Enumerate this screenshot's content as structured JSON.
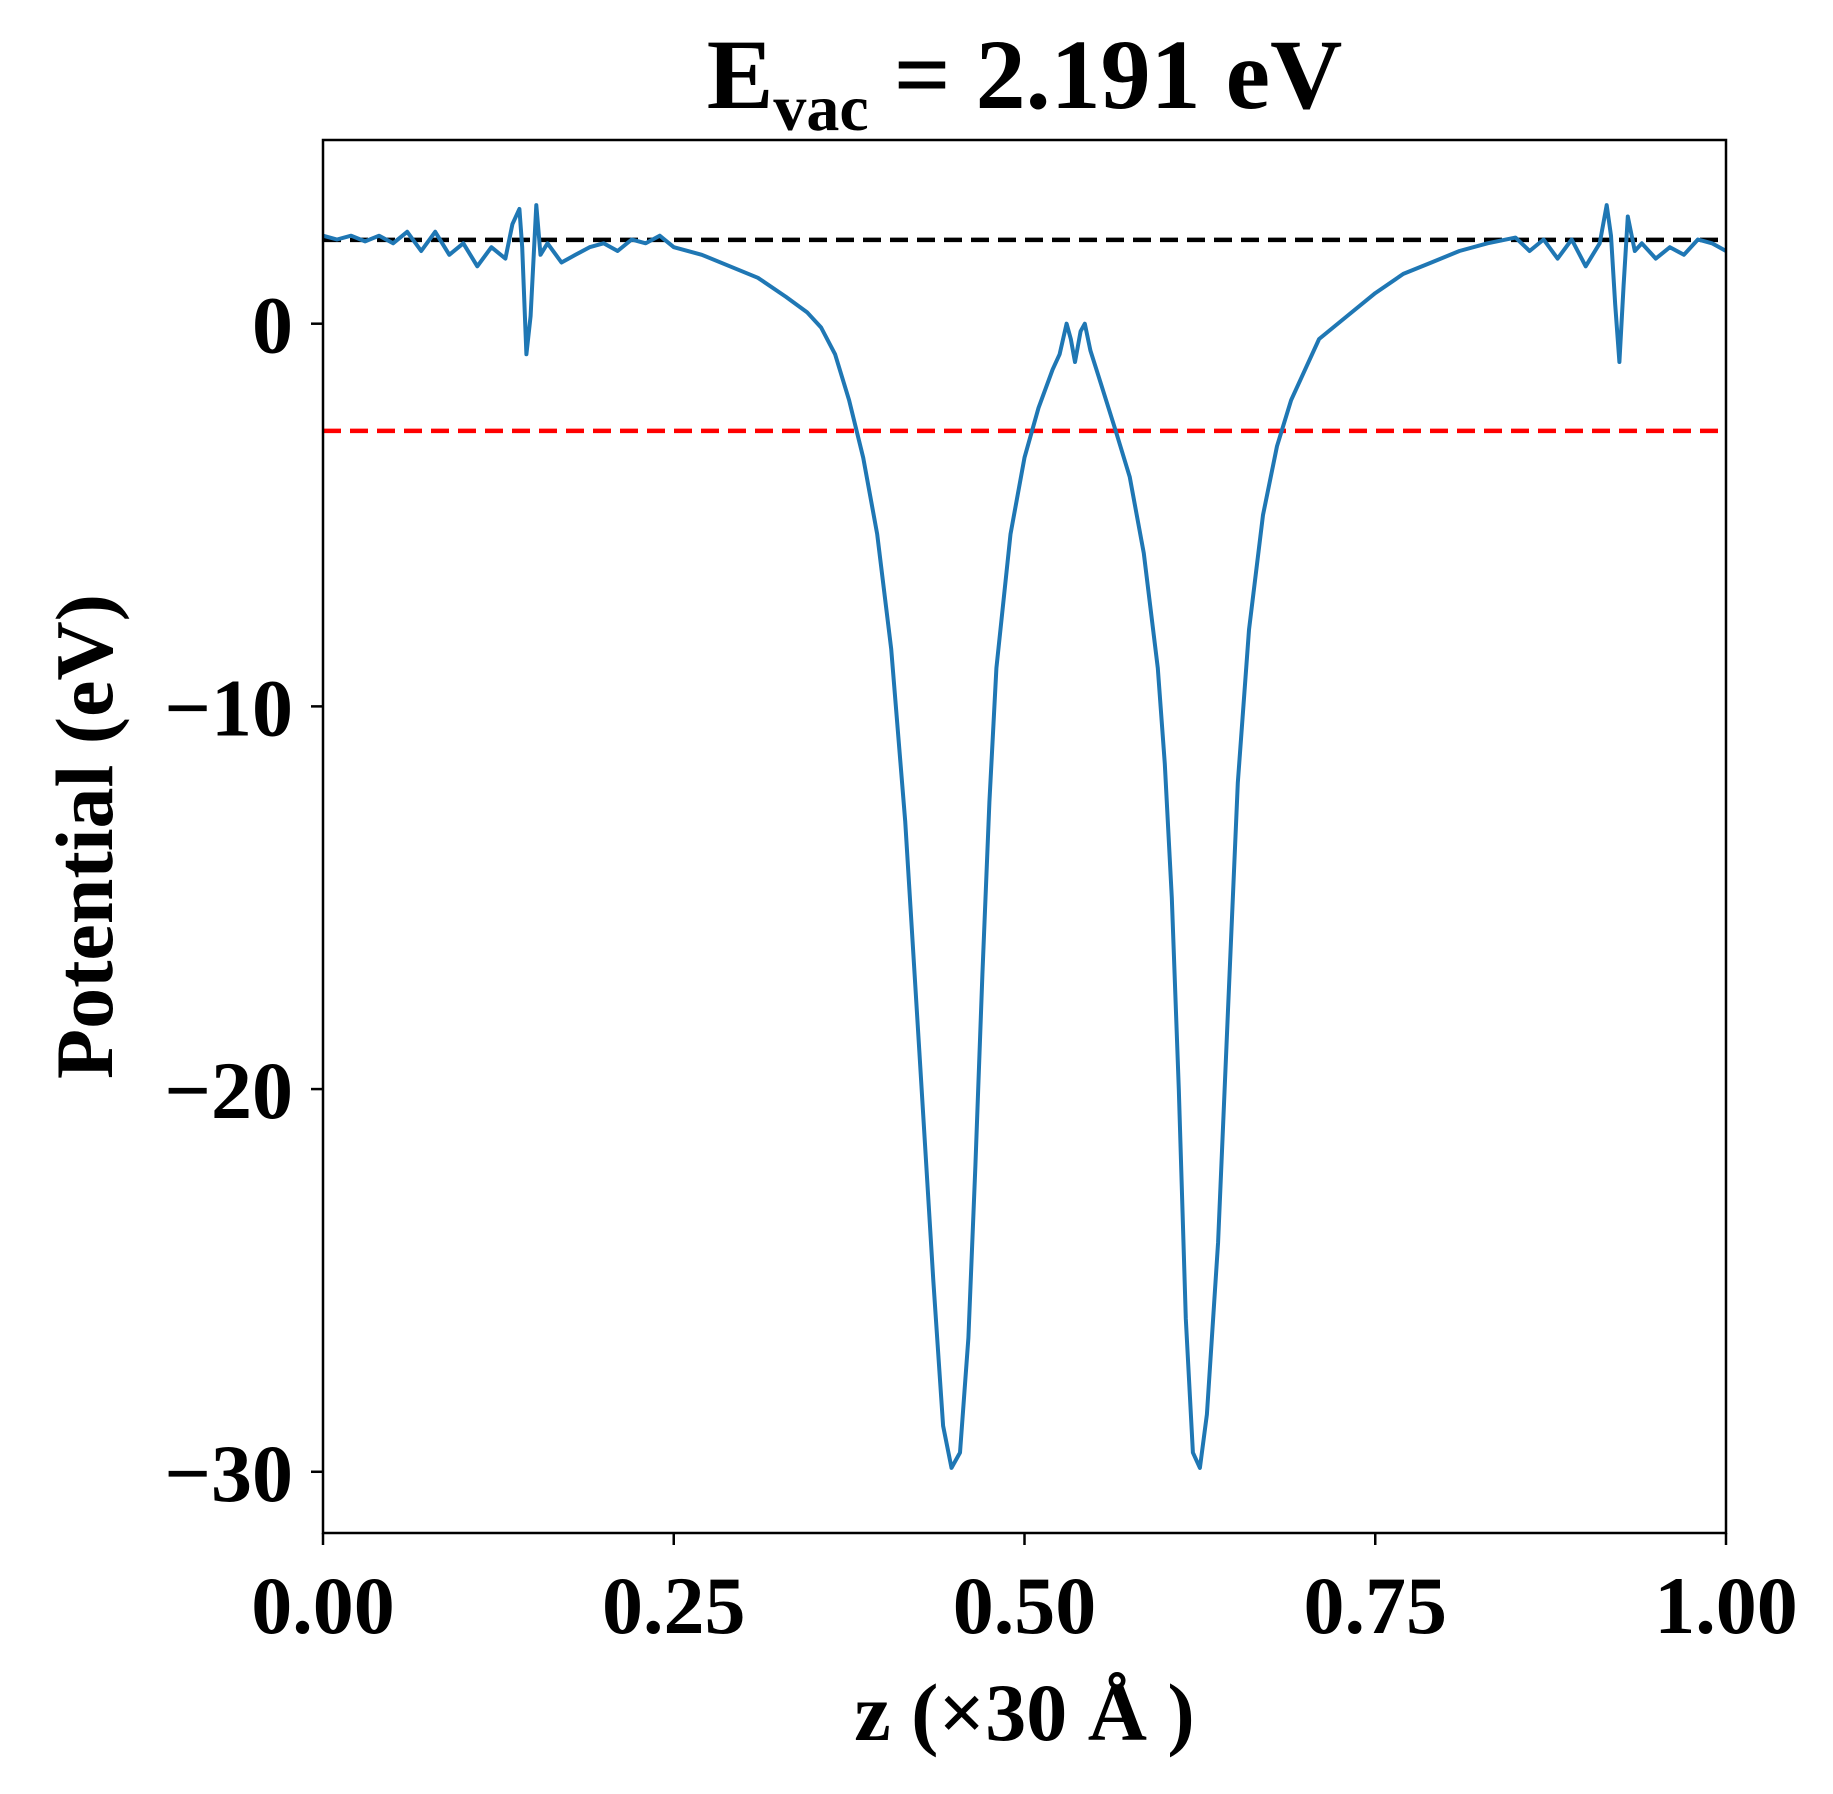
{
  "chart_data": {
    "type": "line",
    "title": {
      "main": "E",
      "subscript": "vac",
      "rest": " = 2.191 eV"
    },
    "xlabel": "z (×30 Å )",
    "ylabel": "Potential (eV)",
    "xlim": [
      0.0,
      1.0
    ],
    "ylim": [
      -31.6,
      4.8
    ],
    "x_ticks": [
      0.0,
      0.25,
      0.5,
      0.75,
      1.0
    ],
    "x_tick_labels": [
      "0.00",
      "0.25",
      "0.50",
      "0.75",
      "1.00"
    ],
    "y_ticks": [
      0,
      -10,
      -20,
      -30
    ],
    "y_tick_labels": [
      "0",
      "−10",
      "−20",
      "−30"
    ],
    "reference_lines": [
      {
        "name": "vacuum-level",
        "y": 2.191,
        "color": "#000000",
        "style": "dashed"
      },
      {
        "name": "fermi-level",
        "y": -2.8,
        "color": "#ff0000",
        "style": "dashed"
      }
    ],
    "series": [
      {
        "name": "planar-averaged-potential",
        "color": "#1f77b4",
        "points": [
          [
            0.0,
            2.3
          ],
          [
            0.01,
            2.2
          ],
          [
            0.02,
            2.3
          ],
          [
            0.03,
            2.15
          ],
          [
            0.04,
            2.3
          ],
          [
            0.05,
            2.1
          ],
          [
            0.06,
            2.4
          ],
          [
            0.07,
            1.9
          ],
          [
            0.08,
            2.4
          ],
          [
            0.09,
            1.8
          ],
          [
            0.1,
            2.1
          ],
          [
            0.11,
            1.5
          ],
          [
            0.12,
            2.0
          ],
          [
            0.13,
            1.7
          ],
          [
            0.135,
            2.6
          ],
          [
            0.14,
            3.0
          ],
          [
            0.142,
            2.0
          ],
          [
            0.145,
            -0.8
          ],
          [
            0.148,
            0.2
          ],
          [
            0.152,
            3.1
          ],
          [
            0.155,
            1.8
          ],
          [
            0.16,
            2.1
          ],
          [
            0.17,
            1.6
          ],
          [
            0.18,
            1.8
          ],
          [
            0.19,
            2.0
          ],
          [
            0.2,
            2.1
          ],
          [
            0.21,
            1.9
          ],
          [
            0.22,
            2.2
          ],
          [
            0.23,
            2.1
          ],
          [
            0.24,
            2.3
          ],
          [
            0.25,
            2.0
          ],
          [
            0.27,
            1.8
          ],
          [
            0.29,
            1.5
          ],
          [
            0.31,
            1.2
          ],
          [
            0.33,
            0.7
          ],
          [
            0.345,
            0.3
          ],
          [
            0.355,
            -0.1
          ],
          [
            0.365,
            -0.8
          ],
          [
            0.375,
            -2.0
          ],
          [
            0.385,
            -3.5
          ],
          [
            0.395,
            -5.5
          ],
          [
            0.405,
            -8.5
          ],
          [
            0.415,
            -13.0
          ],
          [
            0.425,
            -19.0
          ],
          [
            0.435,
            -25.0
          ],
          [
            0.442,
            -28.8
          ],
          [
            0.448,
            -29.9
          ],
          [
            0.454,
            -29.5
          ],
          [
            0.46,
            -26.5
          ],
          [
            0.465,
            -22.0
          ],
          [
            0.47,
            -17.0
          ],
          [
            0.475,
            -12.5
          ],
          [
            0.48,
            -9.0
          ],
          [
            0.49,
            -5.5
          ],
          [
            0.5,
            -3.5
          ],
          [
            0.51,
            -2.2
          ],
          [
            0.52,
            -1.2
          ],
          [
            0.525,
            -0.8
          ],
          [
            0.53,
            0.0
          ],
          [
            0.533,
            -0.4
          ],
          [
            0.536,
            -1.0
          ],
          [
            0.538,
            -0.6
          ],
          [
            0.54,
            -0.2
          ],
          [
            0.543,
            0.0
          ],
          [
            0.547,
            -0.7
          ],
          [
            0.553,
            -1.4
          ],
          [
            0.565,
            -2.8
          ],
          [
            0.575,
            -4.0
          ],
          [
            0.585,
            -6.0
          ],
          [
            0.595,
            -9.0
          ],
          [
            0.6,
            -11.5
          ],
          [
            0.605,
            -15.0
          ],
          [
            0.61,
            -20.0
          ],
          [
            0.615,
            -26.0
          ],
          [
            0.62,
            -29.5
          ],
          [
            0.625,
            -29.9
          ],
          [
            0.63,
            -28.5
          ],
          [
            0.638,
            -24.0
          ],
          [
            0.645,
            -18.0
          ],
          [
            0.652,
            -12.0
          ],
          [
            0.66,
            -8.0
          ],
          [
            0.67,
            -5.0
          ],
          [
            0.68,
            -3.2
          ],
          [
            0.69,
            -2.0
          ],
          [
            0.7,
            -1.2
          ],
          [
            0.71,
            -0.4
          ],
          [
            0.73,
            0.2
          ],
          [
            0.75,
            0.8
          ],
          [
            0.77,
            1.3
          ],
          [
            0.79,
            1.6
          ],
          [
            0.81,
            1.9
          ],
          [
            0.83,
            2.1
          ],
          [
            0.85,
            2.25
          ],
          [
            0.86,
            1.9
          ],
          [
            0.87,
            2.2
          ],
          [
            0.88,
            1.7
          ],
          [
            0.89,
            2.2
          ],
          [
            0.9,
            1.5
          ],
          [
            0.91,
            2.1
          ],
          [
            0.915,
            3.1
          ],
          [
            0.918,
            2.3
          ],
          [
            0.921,
            0.5
          ],
          [
            0.924,
            -1.0
          ],
          [
            0.927,
            1.0
          ],
          [
            0.93,
            2.8
          ],
          [
            0.935,
            1.9
          ],
          [
            0.94,
            2.1
          ],
          [
            0.95,
            1.7
          ],
          [
            0.96,
            2.0
          ],
          [
            0.97,
            1.8
          ],
          [
            0.98,
            2.2
          ],
          [
            0.99,
            2.1
          ],
          [
            1.0,
            1.9
          ]
        ]
      }
    ]
  }
}
